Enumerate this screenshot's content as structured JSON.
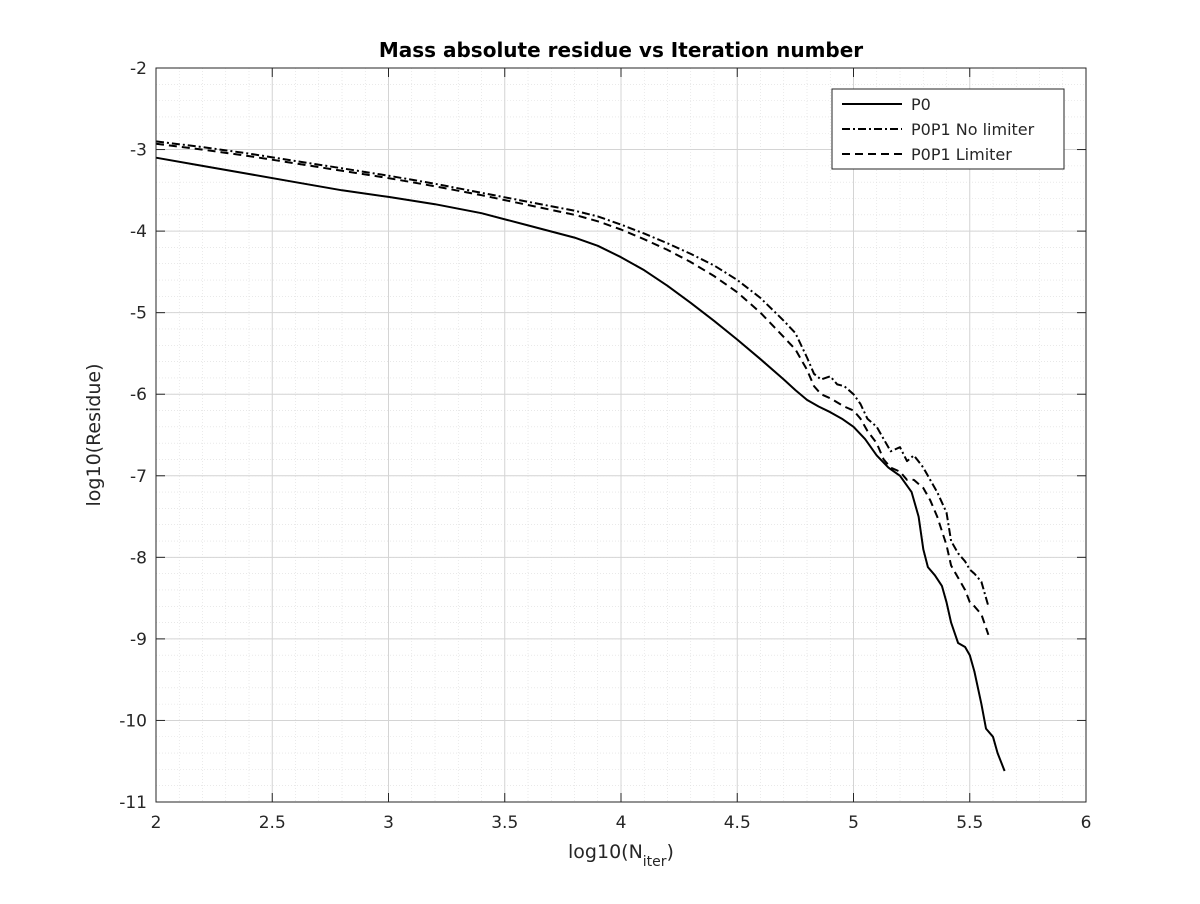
{
  "chart_data": {
    "type": "line",
    "title": "Mass absolute residue vs Iteration number",
    "xlabel": {
      "base": "log10(N",
      "sub": "iter",
      "close": ")"
    },
    "ylabel": "log10(Residue)",
    "xlim": [
      2,
      6
    ],
    "ylim": [
      -11,
      -2
    ],
    "xticks": [
      2,
      2.5,
      3,
      3.5,
      4,
      4.5,
      5,
      5.5,
      6
    ],
    "xtick_labels": [
      "2",
      "2.5",
      "3",
      "3.5",
      "4",
      "4.5",
      "5",
      "5.5",
      "6"
    ],
    "yticks": [
      -2,
      -3,
      -4,
      -5,
      -6,
      -7,
      -8,
      -9,
      -10,
      -11
    ],
    "ytick_labels": [
      "-2",
      "-3",
      "-4",
      "-5",
      "-6",
      "-7",
      "-8",
      "-9",
      "-10",
      "-11"
    ],
    "grid": true,
    "minor_grid": true,
    "legend_position": "top-right",
    "series": [
      {
        "name": "P0",
        "style": "solid",
        "color": "#000000",
        "x": [
          2.0,
          2.2,
          2.4,
          2.6,
          2.8,
          3.0,
          3.2,
          3.4,
          3.6,
          3.8,
          3.9,
          4.0,
          4.1,
          4.2,
          4.3,
          4.4,
          4.5,
          4.6,
          4.7,
          4.75,
          4.8,
          4.85,
          4.9,
          4.95,
          5.0,
          5.05,
          5.1,
          5.15,
          5.2,
          5.25,
          5.28,
          5.3,
          5.32,
          5.35,
          5.38,
          5.4,
          5.42,
          5.45,
          5.48,
          5.5,
          5.52,
          5.55,
          5.57,
          5.6,
          5.62,
          5.65
        ],
        "y": [
          -3.1,
          -3.2,
          -3.3,
          -3.4,
          -3.5,
          -3.58,
          -3.67,
          -3.78,
          -3.93,
          -4.08,
          -4.18,
          -4.32,
          -4.48,
          -4.67,
          -4.88,
          -5.1,
          -5.33,
          -5.57,
          -5.82,
          -5.95,
          -6.07,
          -6.15,
          -6.22,
          -6.3,
          -6.4,
          -6.55,
          -6.75,
          -6.9,
          -7.0,
          -7.2,
          -7.5,
          -7.9,
          -8.12,
          -8.22,
          -8.35,
          -8.55,
          -8.8,
          -9.05,
          -9.1,
          -9.2,
          -9.4,
          -9.8,
          -10.1,
          -10.2,
          -10.4,
          -10.62
        ]
      },
      {
        "name": "P0P1 No limiter",
        "style": "dashdot",
        "color": "#000000",
        "x": [
          2.0,
          2.2,
          2.4,
          2.6,
          2.8,
          3.0,
          3.2,
          3.4,
          3.6,
          3.8,
          3.9,
          4.0,
          4.1,
          4.2,
          4.3,
          4.4,
          4.5,
          4.6,
          4.7,
          4.75,
          4.8,
          4.83,
          4.86,
          4.9,
          4.93,
          4.96,
          5.0,
          5.03,
          5.06,
          5.1,
          5.13,
          5.16,
          5.2,
          5.23,
          5.26,
          5.3,
          5.33,
          5.36,
          5.4,
          5.42,
          5.45,
          5.48,
          5.5,
          5.52,
          5.55,
          5.58
        ],
        "y": [
          -2.9,
          -2.97,
          -3.05,
          -3.14,
          -3.23,
          -3.32,
          -3.42,
          -3.53,
          -3.64,
          -3.75,
          -3.82,
          -3.92,
          -4.03,
          -4.15,
          -4.28,
          -4.42,
          -4.6,
          -4.82,
          -5.1,
          -5.25,
          -5.55,
          -5.75,
          -5.82,
          -5.78,
          -5.88,
          -5.9,
          -6.0,
          -6.12,
          -6.3,
          -6.4,
          -6.55,
          -6.7,
          -6.65,
          -6.82,
          -6.75,
          -6.9,
          -7.05,
          -7.2,
          -7.45,
          -7.8,
          -7.95,
          -8.05,
          -8.15,
          -8.2,
          -8.3,
          -8.6
        ]
      },
      {
        "name": "P0P1 Limiter",
        "style": "dashed",
        "color": "#000000",
        "x": [
          2.0,
          2.2,
          2.4,
          2.6,
          2.8,
          3.0,
          3.2,
          3.4,
          3.6,
          3.8,
          3.9,
          4.0,
          4.1,
          4.2,
          4.3,
          4.4,
          4.5,
          4.6,
          4.7,
          4.75,
          4.8,
          4.83,
          4.86,
          4.9,
          4.93,
          4.96,
          5.0,
          5.03,
          5.06,
          5.1,
          5.13,
          5.16,
          5.2,
          5.23,
          5.26,
          5.3,
          5.33,
          5.36,
          5.4,
          5.42,
          5.45,
          5.48,
          5.5,
          5.52,
          5.55,
          5.58
        ],
        "y": [
          -2.93,
          -3.0,
          -3.08,
          -3.17,
          -3.26,
          -3.35,
          -3.45,
          -3.56,
          -3.68,
          -3.8,
          -3.88,
          -3.98,
          -4.1,
          -4.23,
          -4.38,
          -4.55,
          -4.75,
          -5.0,
          -5.3,
          -5.45,
          -5.7,
          -5.9,
          -6.0,
          -6.05,
          -6.1,
          -6.15,
          -6.2,
          -6.3,
          -6.45,
          -6.6,
          -6.8,
          -6.9,
          -6.95,
          -7.05,
          -7.05,
          -7.15,
          -7.3,
          -7.5,
          -7.85,
          -8.1,
          -8.25,
          -8.4,
          -8.55,
          -8.6,
          -8.7,
          -8.95
        ]
      }
    ]
  }
}
